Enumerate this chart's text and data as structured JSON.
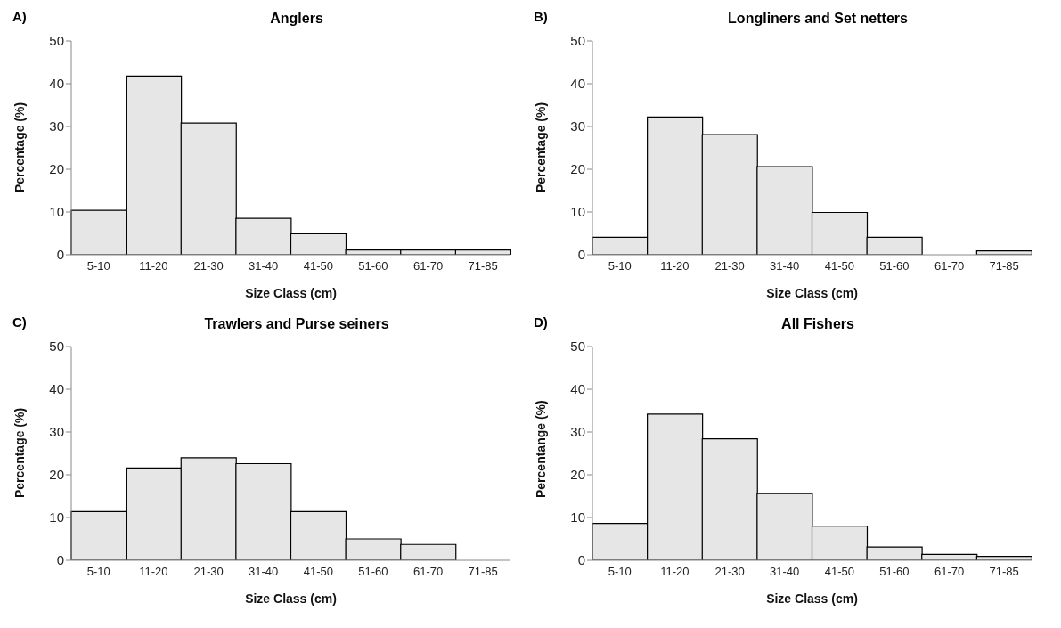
{
  "chart_data": [
    {
      "type": "bar",
      "title": "Anglers",
      "annotations": [
        "A)"
      ],
      "xlabel": "Size Class (cm)",
      "ylabel": "Percentage (%)",
      "categories": [
        "5-10",
        "11-20",
        "21-30",
        "31-40",
        "41-50",
        "51-60",
        "61-70",
        "71-85"
      ],
      "values": [
        10.4,
        41.8,
        30.8,
        8.5,
        4.9,
        1.1,
        1.1,
        1.1
      ],
      "color": "#e6e6e6",
      "ylim": [
        0,
        50
      ],
      "yticks": [
        0,
        10,
        20,
        30,
        40,
        50
      ]
    },
    {
      "type": "bar",
      "title": "Longliners and Set netters",
      "annotations": [
        "B)"
      ],
      "xlabel": "Size Class (cm)",
      "ylabel": "Percentage (%)",
      "categories": [
        "5-10",
        "11-20",
        "21-30",
        "31-40",
        "41-50",
        "51-60",
        "61-70",
        "71-85"
      ],
      "values": [
        4.1,
        32.2,
        28.1,
        20.6,
        9.9,
        4.1,
        0,
        0.9
      ],
      "color": "#e6e6e6",
      "ylim": [
        0,
        50
      ],
      "yticks": [
        0,
        10,
        20,
        30,
        40,
        50
      ]
    },
    {
      "type": "bar",
      "title": "Trawlers and Purse seiners",
      "annotations": [
        "C)"
      ],
      "xlabel": "Size Class (cm)",
      "ylabel": "Percentage (%)",
      "categories": [
        "5-10",
        "11-20",
        "21-30",
        "31-40",
        "41-50",
        "51-60",
        "61-70",
        "71-85"
      ],
      "values": [
        11.4,
        21.6,
        24.0,
        22.6,
        11.4,
        5.0,
        3.7,
        0
      ],
      "color": "#e6e6e6",
      "ylim": [
        0,
        50
      ],
      "yticks": [
        0,
        10,
        20,
        30,
        40,
        50
      ]
    },
    {
      "type": "bar",
      "title": "All Fishers",
      "annotations": [
        "D)"
      ],
      "xlabel": "Size Class (cm)",
      "ylabel": "Percentange (%)",
      "categories": [
        "5-10",
        "11-20",
        "21-30",
        "31-40",
        "41-50",
        "51-60",
        "61-70",
        "71-85"
      ],
      "values": [
        8.6,
        34.2,
        28.4,
        15.6,
        8.0,
        3.1,
        1.4,
        0.9
      ],
      "color": "#e6e6e6",
      "ylim": [
        0,
        50
      ],
      "yticks": [
        0,
        10,
        20,
        30,
        40,
        50
      ]
    }
  ]
}
